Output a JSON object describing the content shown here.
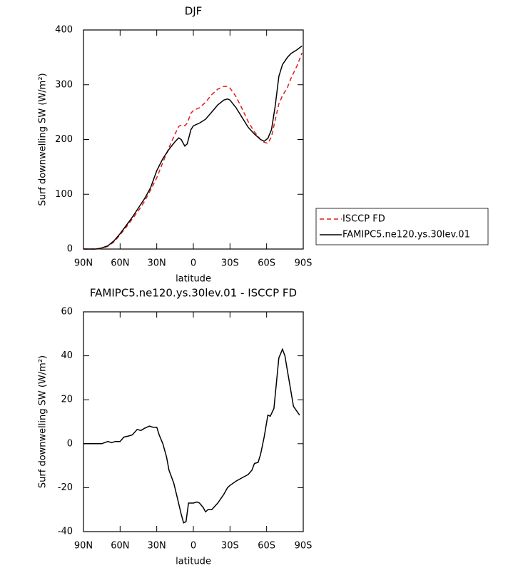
{
  "chart_data": [
    {
      "type": "line",
      "title": "DJF",
      "xlabel": "latitude",
      "ylabel": "Surf downwelling SW (W/m²)",
      "x": [
        90,
        85,
        80,
        75,
        70,
        65,
        60,
        55,
        50,
        45,
        40,
        35,
        30,
        25,
        20,
        15,
        12,
        10,
        7,
        5,
        2,
        0,
        -5,
        -10,
        -15,
        -20,
        -25,
        -28,
        -30,
        -35,
        -40,
        -45,
        -50,
        -55,
        -58,
        -61,
        -64,
        -67,
        -70,
        -73,
        -77,
        -80,
        -85,
        -89
      ],
      "series": [
        {
          "name": "ISCCP FD",
          "color": "#e41a1c",
          "line_style": "dashed",
          "values": [
            0,
            0,
            0,
            1,
            5,
            13,
            26,
            40,
            55,
            70,
            87,
            108,
            130,
            158,
            185,
            210,
            224,
            226,
            225,
            230,
            248,
            253,
            258,
            268,
            282,
            292,
            297,
            297,
            294,
            278,
            256,
            232,
            214,
            200,
            195,
            193,
            205,
            235,
            265,
            280,
            295,
            312,
            335,
            358
          ]
        },
        {
          "name": "FAMIPC5.ne120.ys.30lev.01",
          "color": "#000000",
          "line_style": "solid",
          "values": [
            0,
            0,
            0,
            2,
            6,
            15,
            28,
            43,
            58,
            75,
            92,
            112,
            143,
            165,
            182,
            196,
            203,
            200,
            188,
            192,
            218,
            225,
            230,
            237,
            250,
            263,
            272,
            274,
            272,
            258,
            240,
            222,
            210,
            200,
            197,
            202,
            218,
            260,
            315,
            337,
            350,
            357,
            364,
            371
          ]
        }
      ],
      "xlim": [
        90,
        -90
      ],
      "xticks": [
        {
          "value": 90,
          "label": "90N"
        },
        {
          "value": 60,
          "label": "60N"
        },
        {
          "value": 30,
          "label": "30N"
        },
        0,
        {
          "value": -30,
          "label": "30S"
        },
        {
          "value": -60,
          "label": "60S"
        },
        {
          "value": -90,
          "label": "90S"
        }
      ],
      "ylim": [
        0,
        400
      ],
      "yticks": [
        0,
        100,
        200,
        300,
        400
      ],
      "legend": "right"
    },
    {
      "type": "line",
      "title": "FAMIPC5.ne120.ys.30lev.01 - ISCCP FD",
      "xlabel": "latitude",
      "ylabel": "Surf downwelling SW (W/m²)",
      "x": [
        90,
        80,
        75,
        70,
        67,
        64,
        60,
        57,
        53,
        50,
        46,
        43,
        40,
        36,
        33,
        30,
        28,
        25,
        22,
        20,
        16,
        13,
        10,
        8,
        6,
        4,
        2,
        0,
        -3,
        -5,
        -8,
        -10,
        -12,
        -15,
        -20,
        -25,
        -28,
        -30,
        -35,
        -40,
        -45,
        -48,
        -50,
        -53,
        -55,
        -58,
        -61,
        -63,
        -66,
        -70,
        -73,
        -75,
        -78,
        -82,
        -87
      ],
      "values": [
        0,
        0,
        0,
        1,
        0.5,
        1,
        1,
        3,
        3.5,
        4,
        6.5,
        6,
        7,
        8,
        7.5,
        7.5,
        4,
        0,
        -6,
        -12,
        -18,
        -25,
        -32,
        -36,
        -35.5,
        -27,
        -27,
        -27,
        -26.5,
        -27,
        -29,
        -31,
        -30,
        -30,
        -27,
        -23,
        -20,
        -19,
        -17,
        -15.5,
        -14,
        -12,
        -9,
        -8.5,
        -5,
        3,
        13,
        12.5,
        16,
        39,
        43,
        40,
        30,
        17,
        13
      ],
      "color": "#000000",
      "line_style": "solid",
      "xlim": [
        90,
        -90
      ],
      "xticks": [
        {
          "value": 90,
          "label": "90N"
        },
        {
          "value": 60,
          "label": "60N"
        },
        {
          "value": 30,
          "label": "30N"
        },
        0,
        {
          "value": -30,
          "label": "30S"
        },
        {
          "value": -60,
          "label": "60S"
        },
        {
          "value": -90,
          "label": "90S"
        }
      ],
      "ylim": [
        -40,
        60
      ],
      "yticks": [
        -40,
        -20,
        0,
        20,
        40,
        60
      ]
    }
  ]
}
